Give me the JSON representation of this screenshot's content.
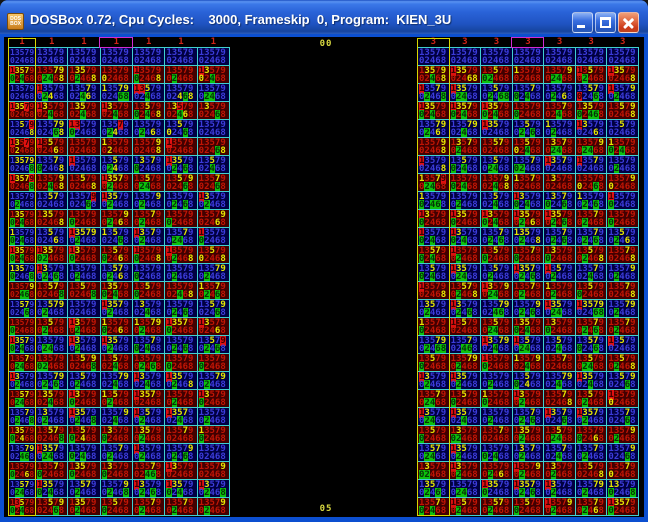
{
  "window": {
    "title": "DOSBox 0.72, Cpu Cycles:    3000, Frameskip  0, Program:  KIEN_3U",
    "icon_text_top": "DOS",
    "icon_text_bottom": "BOX"
  },
  "screen": {
    "top_label": "00",
    "bottom_label": "05",
    "digits_top": "13579",
    "digits_bottom": "02468",
    "colors": {
      "titlebar_blue": "#2a63d8",
      "window_border_blue": "#0c4fd0",
      "close_button_red": "#cc3918",
      "grid_line_cyan": "#3fd0d0",
      "selected_column_yellow": "#d8d800",
      "cursor_box_magenta": "#d32bd3",
      "cell_blue_bg": "#000042",
      "cell_blue_digit": "#3c3cdc",
      "cell_red_bg": "#420000",
      "cell_red_digit": "#c21505",
      "highlight_yellow_digit": "#e8e800",
      "highlight_red_box": "#e01010",
      "highlight_green_box": "#0cc00c",
      "header_digit_red": "#d22418",
      "center_label_yellow": "#d8d840"
    },
    "state_legend": {
      ".": "normal",
      "y": "yellow-digit",
      "r": "red-box-digit",
      "g": "green-box-digit"
    },
    "grids": [
      {
        "id": "left",
        "headers": [
          "1",
          "1",
          "1",
          "1",
          "1",
          "1",
          "1"
        ],
        "selected_column": 1,
        "cursor_header_column": 4,
        "rows": [
          {
            "t": "b",
            "c": [
              "..........",
              "..........",
              "..........",
              "..........",
              "..........",
              "..........",
              ".........."
            ]
          },
          {
            "t": "r",
            "c": [
              "ryyy.g.g..",
              "...yy.gg.y",
              ".yy...g..y",
              ".....y....",
              "r....g...y",
              "......g...",
              "ry...y.g.."
            ]
          },
          {
            "t": "b",
            "c": [
              "..........",
              "r.....gy..",
              "...y...gy.",
              "y..yy...gg",
              "rry....g..",
              ".......ygy",
              "......gg.."
            ]
          },
          {
            "t": "r",
            "c": [
              "ryyr......",
              "ry.....g..",
              ".yy....g..",
              "ry.....g..",
              "..y..g.g.y",
              ".yr....gy.",
              ".y......g."
            ]
          },
          {
            "t": "b",
            "c": [
              "..y.r....y",
              "...yy...gy",
              "rr...g....",
              "...r..gy..",
              "......g.y.",
              "..y..y..g.",
              ".........."
            ]
          },
          {
            "t": "r",
            "c": [
              "ry.r..y...",
              "r.y.....y.",
              "..........",
              "y.....y...",
              "....y....y",
              "r.........",
              "........gy"
            ]
          },
          {
            "t": "b",
            "c": [
              ".yyyy....g",
              "...y.g...y",
              "r.........",
              "..y...gy..",
              ".y.y.g....",
              "ryy...g.g.",
              "..y....g.."
            ]
          },
          {
            "t": "r",
            "c": [
              "ryyyr....g",
              "....y..g.y",
              "..y......y",
              "ryyy..g...",
              "..y...gg..",
              "..y.y...g.",
              "...y....g."
            ]
          },
          {
            "t": "b",
            "c": [
              "......g...",
              "..yy......",
              "....r...g.",
              "ryy...g...",
              "....y.g...",
              "......g.g.",
              "ry....g..."
            ]
          },
          {
            "t": "r",
            "c": [
              ".yy..g.g..",
              ".yy......y",
              ".....g....",
              "....y.g.y.",
              "...y..g...",
              ".....g....",
              "....y...y."
            ]
          },
          {
            "t": "b",
            "c": [
              "y....g.g..",
              "..y.....y.",
              "ryyyy.g...",
              "y.y.....g.",
              "ry.y..g...",
              "...y..gg..",
              "r....g...."
            ]
          },
          {
            "t": "r",
            "c": [
              "ryy..g.g..",
              "ryy..gg...",
              "ry...g....",
              "..y..g..y.",
              "r....g...y",
              "r.....g..y",
              "..y..y...y"
            ]
          },
          {
            "t": "b",
            "c": [
              "yyy..g...g",
              "ry....g.g.",
              "......g...",
              "..yy..g.y.",
              ".....g....",
              "......g...",
              "...yy.g..."
            ]
          },
          {
            "t": "r",
            "c": [
              "....y..gg.",
              "..yy.....g",
              "..y......g",
              ".yy..g.g..",
              "..y..g....",
              ".......g.y",
              "y..y..g.g."
            ]
          },
          {
            "t": "b",
            "c": [
              "..yy....g.",
              "..yyy.g...",
              "..........",
              "ryyy..g...",
              ".y.....g..",
              "......g.g.",
              "..y.y...g."
            ]
          },
          {
            "t": "r",
            "c": [
              ".....g....",
              "..y...g...",
              "ry....g...",
              "y....g..y.",
              "y..yy.g...",
              "ryyy.g....",
              "ry......y."
            ]
          },
          {
            "t": "b",
            "c": [
              "ryyy.g.g..",
              "......gg..",
              "ry....g...",
              "ryy...g...",
              "...y.g.g..",
              "......g.g.",
              "..y.r.g.g."
            ]
          },
          {
            "t": "r",
            "c": [
              "...y..gg..",
              ".....gg...",
              "..y.y....g",
              "..y....g..",
              "......g.g.",
              ".....g....",
              ".....g...."
            ]
          },
          {
            "t": "b",
            "c": [
              "ry....g...",
              "...yy.g.g.",
              "..y...g...",
              "...yy..g..",
              "ry.....g..",
              "ryy...g..y",
              "...yy.g..."
            ]
          },
          {
            "t": "r",
            "c": [
              "..yy..gg..",
              ".yy....g..",
              "ry...g....",
              "y.y...g...",
              "ryyy......",
              "......g...",
              "ry...g...."
            ]
          },
          {
            "t": "b",
            "c": [
              "...y..g..g",
              ".y....g...",
              "ryy...g..g",
              "....y..g..",
              "r.y...g...",
              "ryyy...g..",
              "......g..."
            ]
          },
          {
            "t": "r",
            "c": [
              ".yy..g.y..",
              "..yy.....g",
              "..y..g.y..",
              ".y...g....",
              ".yy...g...",
              "...y......",
              "y....g...."
            ]
          },
          {
            "t": "b",
            "c": [
              "...yy..gg.",
              "ryyy..gg..",
              ".....g.g..",
              "...y..g...",
              "r.....g...",
              "....y.g.g.",
              ".........."
            ]
          },
          {
            "t": "r",
            "c": [
              ".....g..y.",
              "...y.g....",
              ".yy..g....",
              ".y...g....",
              "...y...gg.",
              "ry........",
              "....y....."
            ]
          },
          {
            "t": "b",
            "c": [
              "..yy..gg..",
              "ryy..g.g..",
              "..yy..g...",
              "....y.g..g",
              "ry....g.g.",
              "ryy..g.g..",
              "ry....g..g"
            ]
          },
          {
            "t": "r",
            "c": [
              ".ry..g.g..",
              "..y.y...g.",
              ".yy...g...",
              "..y..g....",
              "...y..g...",
              "...y..g...",
              "....y.g..."
            ]
          }
        ]
      },
      {
        "id": "right",
        "headers": [
          "3",
          "3",
          "3",
          "3",
          "3",
          "3",
          "3"
        ],
        "selected_column": 1,
        "cursor_header_column": 4,
        "rows": [
          {
            "t": "b",
            "c": [
              "..........",
              "..........",
              "..........",
              "..........",
              "..........",
              "..........",
              ".........."
            ]
          },
          {
            "t": "r",
            "c": [
              ".yy.y..g.y",
              "ryy.....yy",
              "..y..gg...",
              "y.........",
              "....y.gg..",
              "r.y...g...",
              "ryy......y"
            ]
          },
          {
            "t": "b",
            "c": [
              "r..y..g..g",
              "ryy...gg..",
              "..y...g.gg",
              "...y.g.g..",
              "......g.y.",
              "..yy.r..g.",
              "r...y.g..."
            ]
          },
          {
            "t": "r",
            "c": [
              "ryy..g.g..",
              "ryyy.g.g..",
              "ryy..g.g..",
              ".....g....",
              "...y...g..",
              ".yy..g.gg.",
              "..y.y....y"
            ]
          },
          {
            "t": "b",
            "c": [
              "...yy.g.y.",
              "...yy..g..",
              "ryy.......",
              "..y...g.g.",
              "y.....g...",
              "ry......y.",
              "..y......."
            ]
          },
          {
            "t": "r",
            "c": [
              "....y....y",
              ".y.y..g...",
              "..yy......",
              "..y..y.g..",
              ".y.y..gg..",
              "....y.gg..",
              "y....g.g.."
            ]
          },
          {
            "t": "b",
            "c": [
              "r........y",
              "..y..g.g..",
              "..y...gg..",
              "...y.gg...",
              "ry.y......",
              "r..y......",
              "......g..."
            ]
          },
          {
            "t": "r",
            "c": [
              "y..yr.gg..",
              ".....g.g..",
              "....y..g.y",
              "y..y......",
              ".y........",
              ".....y..g.",
              "....yy...."
            ]
          },
          {
            "t": "b",
            "c": [
              "y....g.gg.",
              "......g...",
              "..y....g..",
              "ry...g.g..",
              ".y.y.g..g.",
              "y.....g.g.",
              "r....g...."
            ]
          },
          {
            "t": "r",
            "c": [
              "ry...g....",
              "ryy..g....",
              "ry...g.g..",
              "ryy...g.y.",
              "ryy...g.g.",
              "...y..g...",
              ".....g...."
            ]
          },
          {
            "t": "b",
            "c": [
              "r....g.g..",
              "ry...g.g..",
              "...y..g.g.",
              "yyy...g..y",
              "...y..g.g.",
              "...y..g.g.",
              "..y...g.y."
            ]
          },
          {
            "t": "r",
            "c": [
              "..yy.g.g..",
              "r.....g...",
              "..y..g....",
              "...y.g....",
              ".y...g....",
              "..y...g..y",
              "...y.....y"
            ]
          },
          {
            "t": "b",
            "c": [
              "..y..g.g..",
              "ryy...gg..",
              "..y...g...",
              "ryyy..g.g.",
              "r.y...g...",
              "...y...g..",
              "....y.g..."
            ]
          },
          {
            "t": "r",
            "c": [
              "r........y",
              "..yy..g..y",
              "ry..y.gg..",
              "...y..g...",
              "y.....g...",
              "..y..g....",
              "...y.....y"
            ]
          },
          {
            "t": "b",
            "c": [
              ".yy...g...",
              "ry....g.g.",
              "...yy..gg.",
              "....y.g.g.",
              "ryy...gg..",
              "ryyyy...gg",
              "...yy.g..."
            ]
          },
          {
            "t": "r",
            "c": [
              "y....g....",
              "r.y.......",
              "..y...gg..",
              ".yy..g.g..",
              ".y...g....",
              "...y..g.g.",
              "...y..g..."
            ]
          },
          {
            "t": "b",
            "c": [
              "...yy.g.gg",
              "...y...gg.",
              "ry.yy..g..",
              "r.y...gg..",
              "..y....g..",
              "..yy.g..g.",
              "r.y......."
            ]
          },
          {
            "t": "r",
            "c": [
              "..y..g....",
              "...yy.g...",
              "r....g....",
              "y...y..g..",
              "...y......",
              "..y...gg..",
              "..y...g..y"
            ]
          },
          {
            "t": "b",
            "c": [
              "ry....g...",
              "ryy...g...",
              "......g...",
              "..y..g.y..",
              "...yy..g..",
              "ryy....g..",
              "..y.y...g."
            ]
          },
          {
            "t": "r",
            "c": [
              "...y..gg..",
              "..y..g....",
              "y....g....",
              "ry....g...",
              "...y.....y",
              "..y...g...",
              "r....y...."
            ]
          },
          {
            "t": "b",
            "c": [
              "ry....gg..",
              "ryy....g..",
              "......g...",
              "...y..g.g.",
              "ry.y....g.",
              "ryyy..g...",
              "...y....g."
            ]
          },
          {
            "t": "r",
            "c": [
              "..y..g....",
              ".y...gg...",
              "...y......",
              ".yy...g...",
              "..y...gg..",
              ".....g..y.",
              "....y.g..."
            ]
          },
          {
            "t": "b",
            "c": [
              "..yy..gg..",
              "ryy...g...",
              ".....g.g..",
              ".y.y..g...",
              "...y...g..",
              "...y..g...",
              "....y...g."
            ]
          },
          {
            "t": "r",
            "c": [
              ".y...gg...",
              "ry....g...",
              "......g.y.",
              "r...y.g...",
              ".y....g...",
              "..y......y",
              "...y.y...."
            ]
          },
          {
            "t": "b",
            "c": [
              ".yy...g.g.",
              "......gg..",
              "ryy..g....",
              "ryyy..g.g.",
              "ry....g...",
              "...yy.g...",
              "yy...g...g"
            ]
          },
          {
            "t": "r",
            "c": [
              "...y.g.g..",
              "r.y...g...",
              "..yy..g...",
              "..y..g....",
              "r...y.g...",
              "...y..g.y.",
              "ryyy.g...."
            ]
          }
        ]
      }
    ]
  }
}
